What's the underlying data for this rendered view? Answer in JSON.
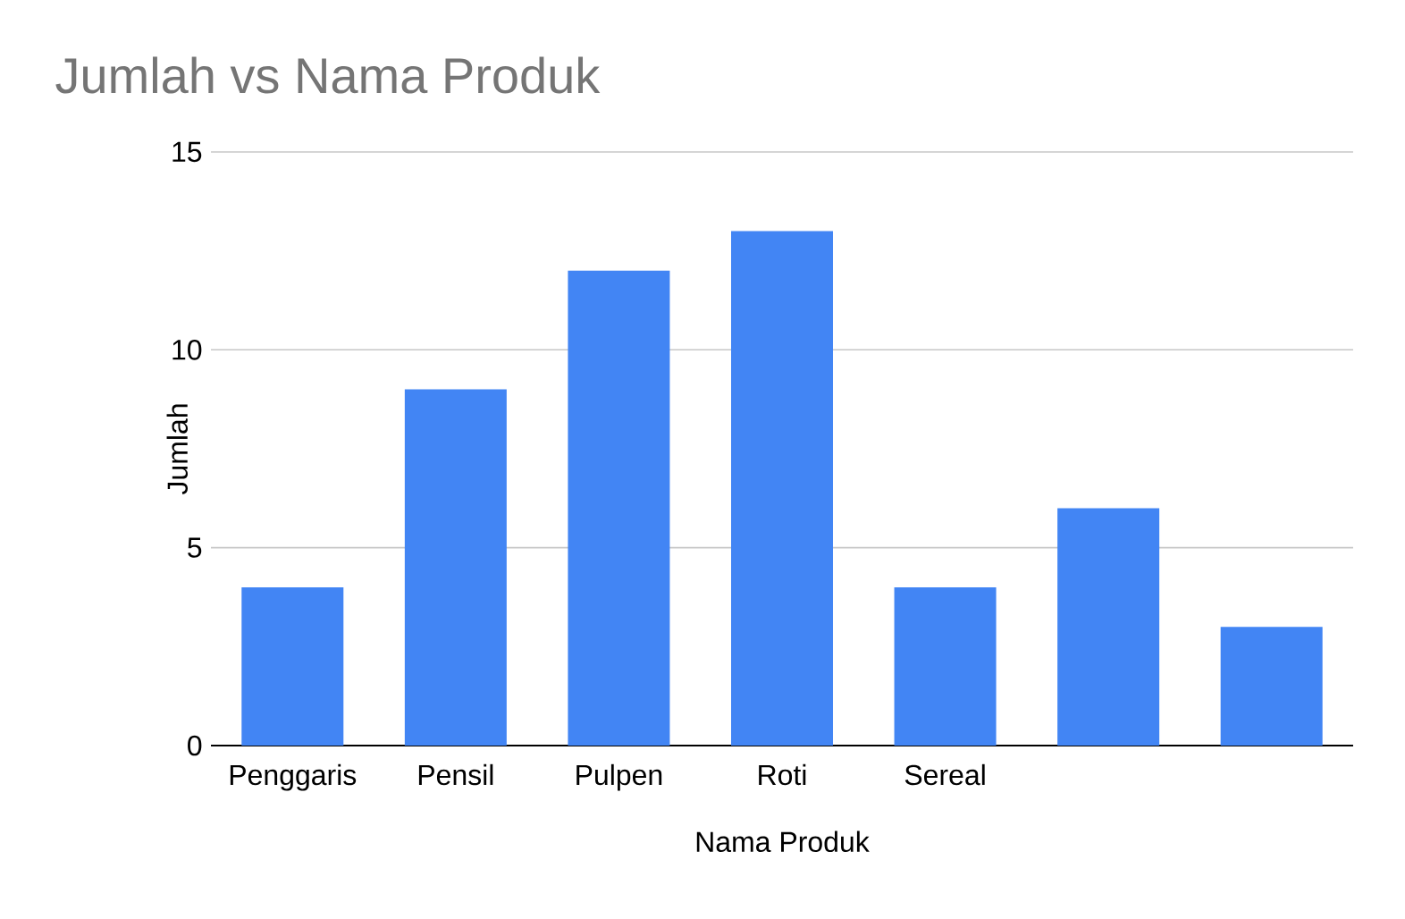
{
  "chart_data": {
    "type": "bar",
    "title": "Jumlah vs Nama Produk",
    "xlabel": "Nama Produk",
    "ylabel": "Jumlah",
    "categories": [
      "Penggaris",
      "Pensil",
      "Pulpen",
      "Roti",
      "Sereal",
      null,
      null
    ],
    "values": [
      4,
      9,
      12,
      13,
      4,
      6,
      3
    ],
    "color": "#4285f4",
    "ylim": [
      0,
      15
    ],
    "yticks": [
      0,
      5,
      10,
      15
    ],
    "grid": "y"
  }
}
